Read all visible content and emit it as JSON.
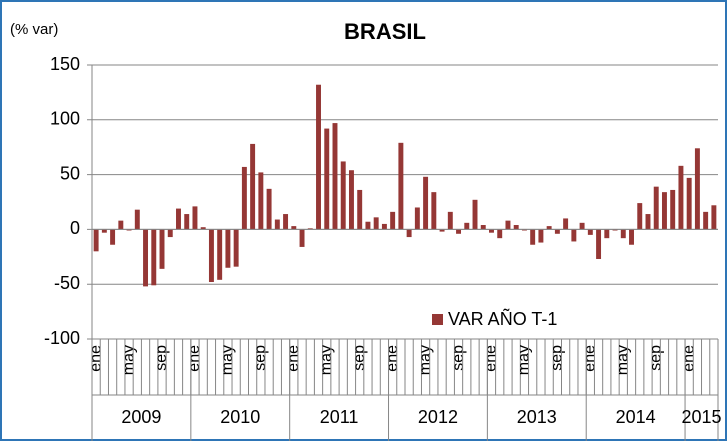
{
  "chart_data": {
    "type": "bar",
    "title": "BRASIL",
    "y_label": "(% var)",
    "categories": [
      "ene",
      null,
      null,
      null,
      "may",
      null,
      null,
      null,
      "sep",
      null,
      null,
      null,
      "ene",
      null,
      null,
      null,
      "may",
      null,
      null,
      null,
      "sep",
      null,
      null,
      null,
      "ene",
      null,
      null,
      null,
      "may",
      null,
      null,
      null,
      "sep",
      null,
      null,
      null,
      "ene",
      null,
      null,
      null,
      "may",
      null,
      null,
      null,
      "sep",
      null,
      null,
      null,
      "ene",
      null,
      null,
      null,
      "may",
      null,
      null,
      null,
      "sep",
      null,
      null,
      null,
      "ene",
      null,
      null,
      null,
      "may",
      null,
      null,
      null,
      "sep",
      null,
      null,
      null,
      "ene",
      null,
      null,
      null
    ],
    "x_groups": [
      "2009",
      "2010",
      "2011",
      "2012",
      "2013",
      "2014",
      "2015"
    ],
    "series": [
      {
        "name": "VAR AÑO T-1",
        "color": "#953735",
        "values": [
          -20,
          -3,
          -14,
          8,
          -1,
          18,
          -52,
          -51,
          -36,
          -7,
          19,
          14,
          21,
          2,
          -48,
          -46,
          -35,
          -34,
          57,
          78,
          52,
          37,
          9,
          14,
          3,
          -16,
          1,
          132,
          92,
          97,
          62,
          54,
          36,
          7,
          11,
          5,
          16,
          79,
          -7,
          20,
          48,
          34,
          -2,
          16,
          -4,
          6,
          27,
          4,
          -3,
          -8,
          8,
          4,
          -1,
          -14,
          -12,
          3,
          -4,
          10,
          -11,
          6,
          -5,
          -27,
          -8,
          -1,
          -8,
          -14,
          24,
          14,
          39,
          34,
          36,
          58,
          47,
          74,
          16,
          22
        ]
      }
    ],
    "ylim": [
      -100,
      150
    ],
    "yticks": [
      150,
      100,
      50,
      0,
      -50,
      -100
    ],
    "grid": true
  }
}
